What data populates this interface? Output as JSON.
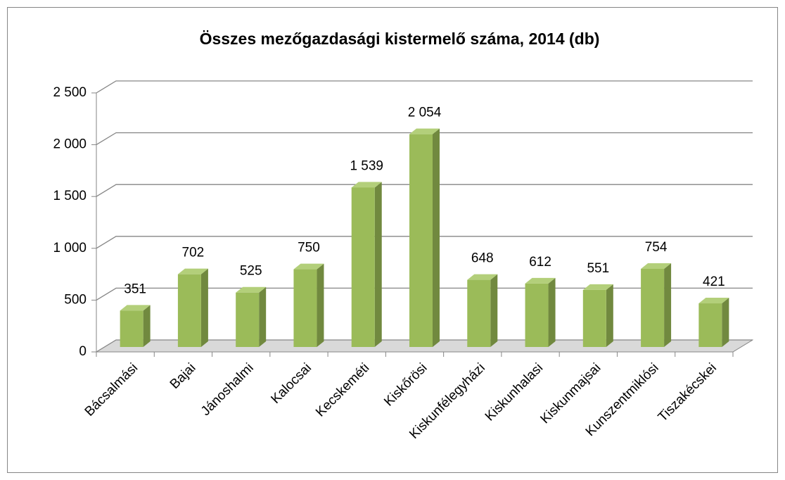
{
  "chart_data": {
    "type": "bar3d",
    "title": "Összes mezőgazdasági kistermelő száma, 2014 (db)",
    "categories": [
      "Bácsalmási",
      "Bajai",
      "Jánoshalmi",
      "Kalocsai",
      "Kecskeméti",
      "Kiskőrösi",
      "Kiskunfélegyházi",
      "Kiskunhalasi",
      "Kiskunmajsai",
      "Kunszentmiklósi",
      "Tiszakécskei"
    ],
    "values": [
      351,
      702,
      525,
      750,
      1539,
      2054,
      648,
      612,
      551,
      754,
      421
    ],
    "value_labels": [
      "351",
      "702",
      "525",
      "750",
      "1 539",
      "2 054",
      "648",
      "612",
      "551",
      "754",
      "421"
    ],
    "color": "#9bbb59",
    "ylim": [
      0,
      2500
    ],
    "yticks": [
      0,
      500,
      {
        "value": 1000,
        "label": "1 000"
      },
      {
        "value": 1500,
        "label": "1 500"
      },
      {
        "value": 2000,
        "label": "2 000"
      },
      {
        "value": 2500,
        "label": "2 500"
      }
    ],
    "grid": true
  }
}
